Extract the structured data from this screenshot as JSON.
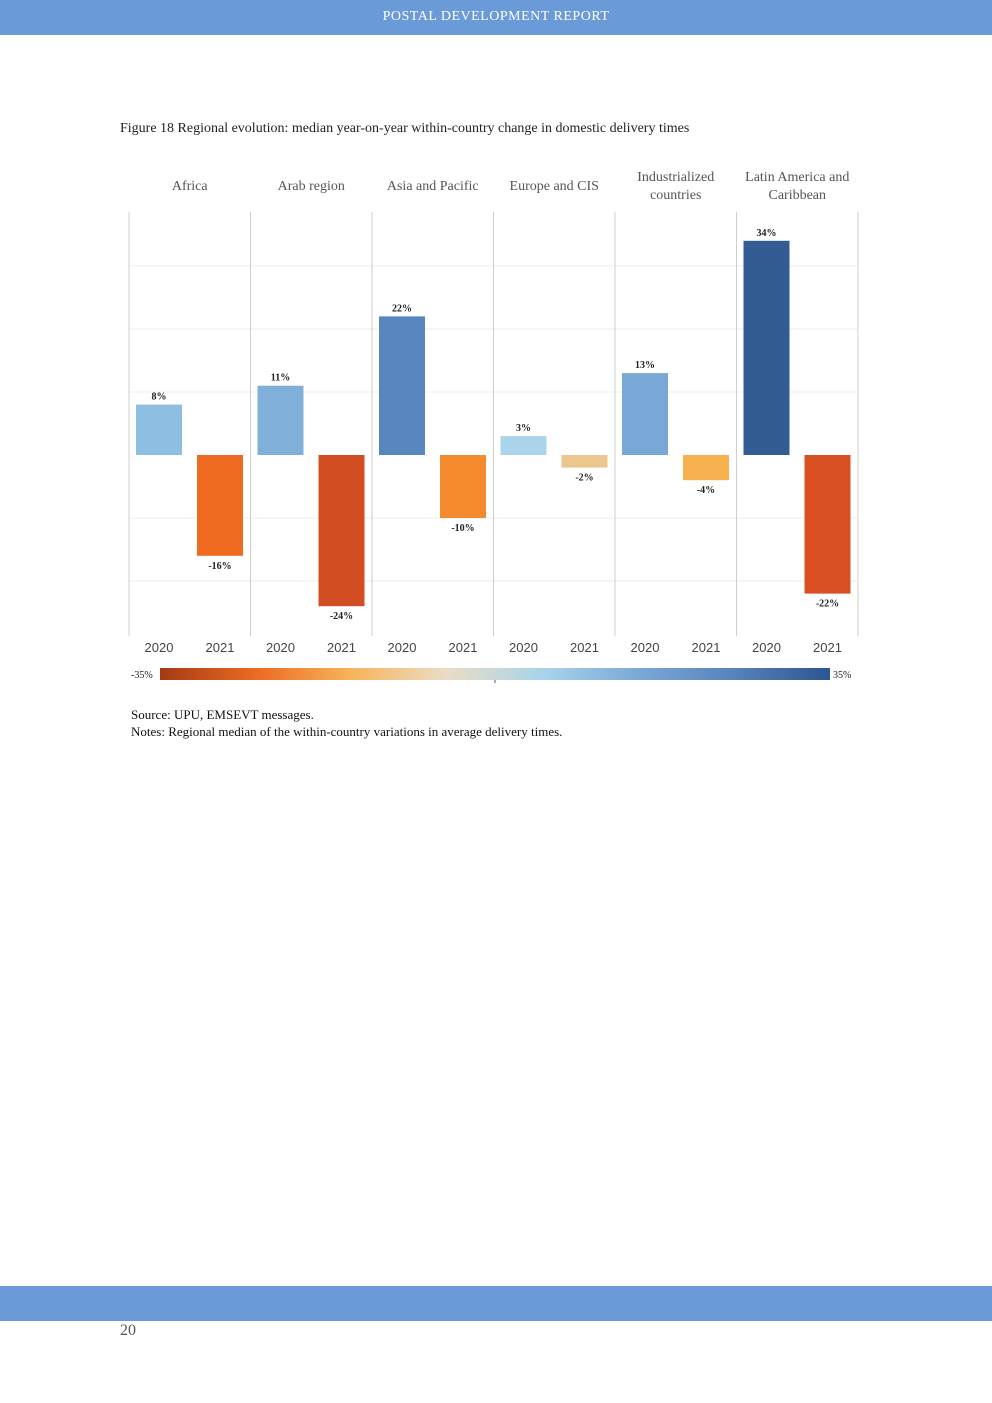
{
  "header": {
    "title": "POSTAL DEVELOPMENT REPORT"
  },
  "figure": {
    "caption": "Figure 18 Regional evolution: median year-on-year within-country change in domestic delivery times"
  },
  "chart_data": {
    "type": "bar",
    "title": "Figure 18 Regional evolution: median year-on-year within-country change in domestic delivery times",
    "groups": [
      {
        "name": "Africa",
        "label_lines": [
          "Africa"
        ],
        "bars": [
          {
            "year": "2020",
            "value": 8,
            "label": "8%",
            "color": "#8dbfe3"
          },
          {
            "year": "2021",
            "value": -16,
            "label": "-16%",
            "color": "#ee6a21"
          }
        ]
      },
      {
        "name": "Arab region",
        "label_lines": [
          "Arab region"
        ],
        "bars": [
          {
            "year": "2020",
            "value": 11,
            "label": "11%",
            "color": "#80b0da"
          },
          {
            "year": "2021",
            "value": -24,
            "label": "-24%",
            "color": "#d34d23"
          }
        ]
      },
      {
        "name": "Asia and Pacific",
        "label_lines": [
          "Asia and Pacific"
        ],
        "bars": [
          {
            "year": "2020",
            "value": 22,
            "label": "22%",
            "color": "#5887c0"
          },
          {
            "year": "2021",
            "value": -10,
            "label": "-10%",
            "color": "#f38a2d"
          }
        ]
      },
      {
        "name": "Europe and CIS",
        "label_lines": [
          "Europe and CIS"
        ],
        "bars": [
          {
            "year": "2020",
            "value": 3,
            "label": "3%",
            "color": "#a9d4ea"
          },
          {
            "year": "2021",
            "value": -2,
            "label": "-2%",
            "color": "#ebc68f"
          }
        ]
      },
      {
        "name": "Industrialized countries",
        "label_lines": [
          "Industrialized",
          "countries"
        ],
        "bars": [
          {
            "year": "2020",
            "value": 13,
            "label": "13%",
            "color": "#78a8d5"
          },
          {
            "year": "2021",
            "value": -4,
            "label": "-4%",
            "color": "#f7b14f"
          }
        ]
      },
      {
        "name": "Latin America and Caribbean",
        "label_lines": [
          "Latin America and",
          "Caribbean"
        ],
        "bars": [
          {
            "year": "2020",
            "value": 34,
            "label": "34%",
            "color": "#335c95"
          },
          {
            "year": "2021",
            "value": -22,
            "label": "-22%",
            "color": "#d84f22"
          }
        ]
      }
    ],
    "ylim": [
      -28,
      38
    ],
    "gridlines": [
      -20,
      -10,
      10,
      20,
      30
    ],
    "colorscale": {
      "min_label": "-35%",
      "max_label": "35%",
      "stops": [
        "#a33a14",
        "#ec6a22",
        "#f7b45b",
        "#e9ddc5",
        "#a8d4ea",
        "#7ca8d6",
        "#5882bc",
        "#2d5590"
      ]
    },
    "xlabel": "",
    "ylabel": ""
  },
  "source": {
    "line1": "Source: UPU, EMSEVT messages.",
    "line2": "Notes: Regional median of the within-country variations in average delivery times."
  },
  "footer": {
    "page_number": "20"
  }
}
